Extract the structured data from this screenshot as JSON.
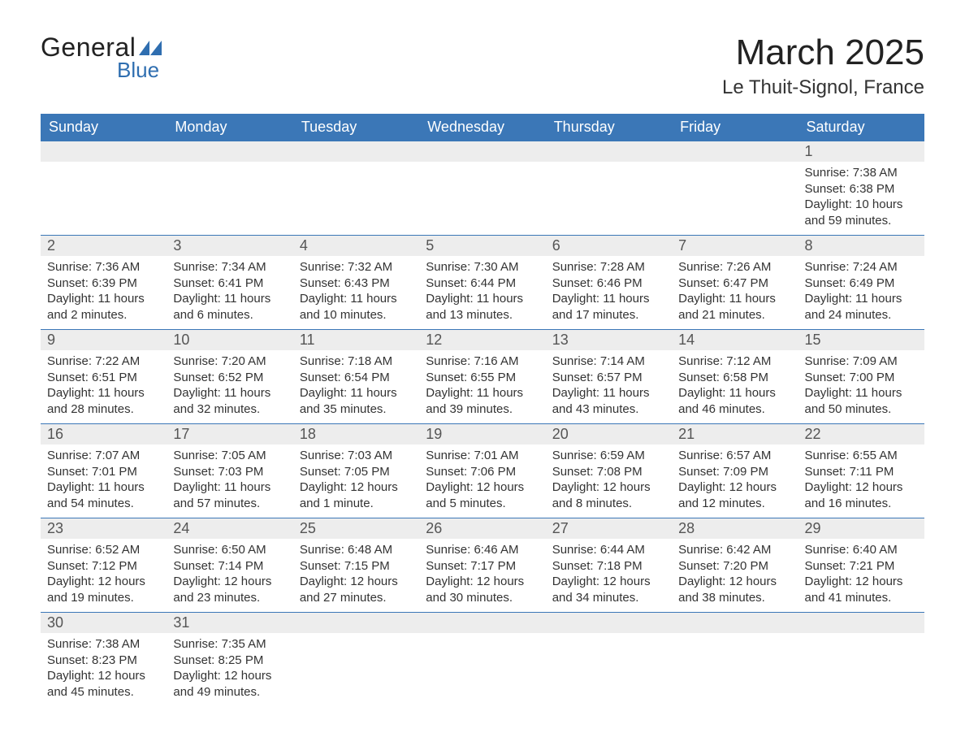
{
  "logo": {
    "general": "General",
    "blue": "Blue"
  },
  "title": {
    "month": "March 2025",
    "location": "Le Thuit-Signol, France"
  },
  "colors": {
    "header_bg": "#3b77b7",
    "header_text": "#ffffff",
    "daynum_bg": "#ededed",
    "daynum_text": "#555555",
    "body_text": "#333333",
    "row_border": "#3b77b7",
    "logo_blue": "#2f6eb0"
  },
  "weekdays": [
    "Sunday",
    "Monday",
    "Tuesday",
    "Wednesday",
    "Thursday",
    "Friday",
    "Saturday"
  ],
  "labels": {
    "sunrise": "Sunrise:",
    "sunset": "Sunset:",
    "daylight": "Daylight:"
  },
  "weeks": [
    [
      null,
      null,
      null,
      null,
      null,
      null,
      {
        "d": "1",
        "sr": "7:38 AM",
        "ss": "6:38 PM",
        "dl": "10 hours and 59 minutes."
      }
    ],
    [
      {
        "d": "2",
        "sr": "7:36 AM",
        "ss": "6:39 PM",
        "dl": "11 hours and 2 minutes."
      },
      {
        "d": "3",
        "sr": "7:34 AM",
        "ss": "6:41 PM",
        "dl": "11 hours and 6 minutes."
      },
      {
        "d": "4",
        "sr": "7:32 AM",
        "ss": "6:43 PM",
        "dl": "11 hours and 10 minutes."
      },
      {
        "d": "5",
        "sr": "7:30 AM",
        "ss": "6:44 PM",
        "dl": "11 hours and 13 minutes."
      },
      {
        "d": "6",
        "sr": "7:28 AM",
        "ss": "6:46 PM",
        "dl": "11 hours and 17 minutes."
      },
      {
        "d": "7",
        "sr": "7:26 AM",
        "ss": "6:47 PM",
        "dl": "11 hours and 21 minutes."
      },
      {
        "d": "8",
        "sr": "7:24 AM",
        "ss": "6:49 PM",
        "dl": "11 hours and 24 minutes."
      }
    ],
    [
      {
        "d": "9",
        "sr": "7:22 AM",
        "ss": "6:51 PM",
        "dl": "11 hours and 28 minutes."
      },
      {
        "d": "10",
        "sr": "7:20 AM",
        "ss": "6:52 PM",
        "dl": "11 hours and 32 minutes."
      },
      {
        "d": "11",
        "sr": "7:18 AM",
        "ss": "6:54 PM",
        "dl": "11 hours and 35 minutes."
      },
      {
        "d": "12",
        "sr": "7:16 AM",
        "ss": "6:55 PM",
        "dl": "11 hours and 39 minutes."
      },
      {
        "d": "13",
        "sr": "7:14 AM",
        "ss": "6:57 PM",
        "dl": "11 hours and 43 minutes."
      },
      {
        "d": "14",
        "sr": "7:12 AM",
        "ss": "6:58 PM",
        "dl": "11 hours and 46 minutes."
      },
      {
        "d": "15",
        "sr": "7:09 AM",
        "ss": "7:00 PM",
        "dl": "11 hours and 50 minutes."
      }
    ],
    [
      {
        "d": "16",
        "sr": "7:07 AM",
        "ss": "7:01 PM",
        "dl": "11 hours and 54 minutes."
      },
      {
        "d": "17",
        "sr": "7:05 AM",
        "ss": "7:03 PM",
        "dl": "11 hours and 57 minutes."
      },
      {
        "d": "18",
        "sr": "7:03 AM",
        "ss": "7:05 PM",
        "dl": "12 hours and 1 minute."
      },
      {
        "d": "19",
        "sr": "7:01 AM",
        "ss": "7:06 PM",
        "dl": "12 hours and 5 minutes."
      },
      {
        "d": "20",
        "sr": "6:59 AM",
        "ss": "7:08 PM",
        "dl": "12 hours and 8 minutes."
      },
      {
        "d": "21",
        "sr": "6:57 AM",
        "ss": "7:09 PM",
        "dl": "12 hours and 12 minutes."
      },
      {
        "d": "22",
        "sr": "6:55 AM",
        "ss": "7:11 PM",
        "dl": "12 hours and 16 minutes."
      }
    ],
    [
      {
        "d": "23",
        "sr": "6:52 AM",
        "ss": "7:12 PM",
        "dl": "12 hours and 19 minutes."
      },
      {
        "d": "24",
        "sr": "6:50 AM",
        "ss": "7:14 PM",
        "dl": "12 hours and 23 minutes."
      },
      {
        "d": "25",
        "sr": "6:48 AM",
        "ss": "7:15 PM",
        "dl": "12 hours and 27 minutes."
      },
      {
        "d": "26",
        "sr": "6:46 AM",
        "ss": "7:17 PM",
        "dl": "12 hours and 30 minutes."
      },
      {
        "d": "27",
        "sr": "6:44 AM",
        "ss": "7:18 PM",
        "dl": "12 hours and 34 minutes."
      },
      {
        "d": "28",
        "sr": "6:42 AM",
        "ss": "7:20 PM",
        "dl": "12 hours and 38 minutes."
      },
      {
        "d": "29",
        "sr": "6:40 AM",
        "ss": "7:21 PM",
        "dl": "12 hours and 41 minutes."
      }
    ],
    [
      {
        "d": "30",
        "sr": "7:38 AM",
        "ss": "8:23 PM",
        "dl": "12 hours and 45 minutes."
      },
      {
        "d": "31",
        "sr": "7:35 AM",
        "ss": "8:25 PM",
        "dl": "12 hours and 49 minutes."
      },
      null,
      null,
      null,
      null,
      null
    ]
  ]
}
